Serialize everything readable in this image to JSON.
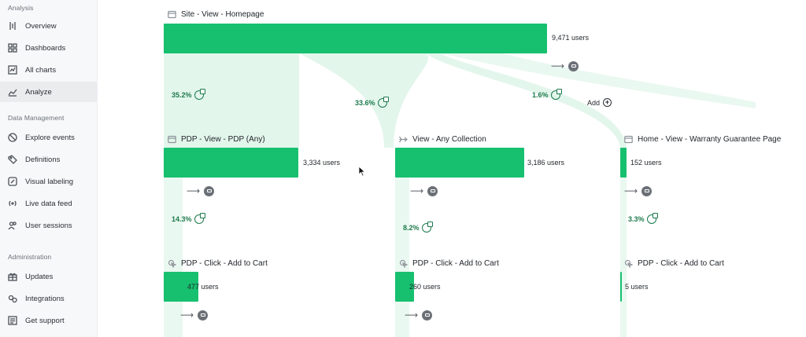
{
  "sidebar": {
    "sections": [
      {
        "label": "Analysis",
        "items": [
          {
            "label": "Overview",
            "icon": "overview-icon"
          },
          {
            "label": "Dashboards",
            "icon": "dashboards-icon"
          },
          {
            "label": "All charts",
            "icon": "all-charts-icon"
          },
          {
            "label": "Analyze",
            "icon": "analyze-icon",
            "active": true
          }
        ]
      },
      {
        "label": "Data Management",
        "items": [
          {
            "label": "Explore events",
            "icon": "explore-icon"
          },
          {
            "label": "Definitions",
            "icon": "definitions-icon"
          },
          {
            "label": "Visual labeling",
            "icon": "pencil-icon"
          },
          {
            "label": "Live data feed",
            "icon": "broadcast-icon"
          },
          {
            "label": "User sessions",
            "icon": "users-icon"
          }
        ]
      },
      {
        "label": "Administration",
        "items": [
          {
            "label": "Updates",
            "icon": "gift-icon"
          },
          {
            "label": "Integrations",
            "icon": "integrations-icon"
          },
          {
            "label": "Get support",
            "icon": "support-icon"
          }
        ]
      }
    ]
  },
  "flow": {
    "root": {
      "title": "Site - View - Homepage",
      "users": "9,471 users",
      "users_value": 9471
    },
    "branches": [
      {
        "pct": "35.2%",
        "node": {
          "title": "PDP - View - PDP (Any)",
          "users": "3,334 users",
          "users_value": 3334
        },
        "next_pct": "14.3%",
        "child": {
          "title": "PDP - Click - Add to Cart",
          "users": "477 users",
          "users_value": 477
        }
      },
      {
        "pct": "33.6%",
        "node": {
          "title": "View - Any Collection",
          "users": "3,186 users",
          "users_value": 3186
        },
        "next_pct": "8.2%",
        "child": {
          "title": "PDP - Click - Add to Cart",
          "users": "260 users",
          "users_value": 260
        }
      },
      {
        "pct": "1.6%",
        "node": {
          "title": "Home - View - Warranty Guarantee Page",
          "users": "152 users",
          "users_value": 152
        },
        "next_pct": "3.3%",
        "child": {
          "title": "PDP - Click - Add to Cart",
          "users": "5 users",
          "users_value": 5
        }
      }
    ],
    "add_label": "Add"
  },
  "colors": {
    "bar": "#17c06f",
    "flow": "#e3f6ec",
    "pct_text": "#1d7a4c"
  }
}
